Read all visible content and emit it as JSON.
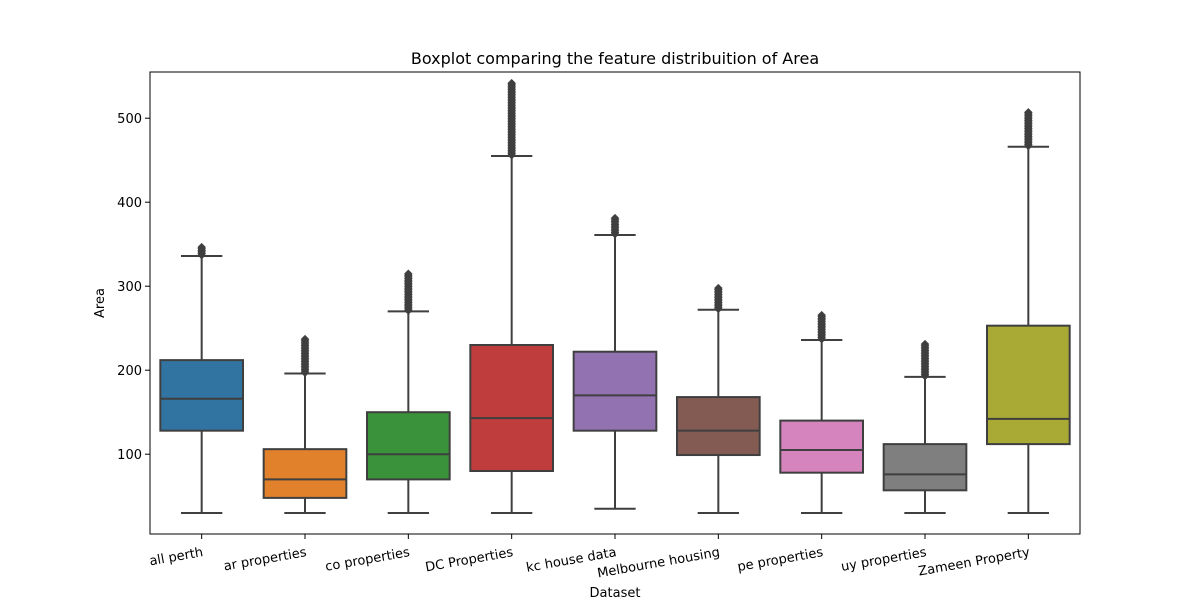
{
  "chart_data": {
    "type": "boxplot",
    "title": "Boxplot comparing the feature distribuition of Area",
    "xlabel": "Dataset",
    "ylabel": "Area",
    "ylim": [
      5,
      555
    ],
    "yticks": [
      100,
      200,
      300,
      400,
      500
    ],
    "grid": false,
    "categories": [
      "all perth",
      "ar properties",
      "co properties",
      "DC Properties",
      "kc house data",
      "Melbourne housing",
      "pe properties",
      "uy properties",
      "Zameen Property"
    ],
    "colors": [
      "#3274a1",
      "#e1812c",
      "#3a923a",
      "#c03d3e",
      "#9372b2",
      "#845b53",
      "#d684bd",
      "#7f7f7f",
      "#a9aa35"
    ],
    "boxes": [
      {
        "min": 30,
        "q1": 128,
        "median": 166,
        "q3": 212,
        "max": 336,
        "outlier_min": 337,
        "outlier_max": 348
      },
      {
        "min": 30,
        "q1": 48,
        "median": 70,
        "q3": 106,
        "max": 196,
        "outlier_min": 197,
        "outlier_max": 237
      },
      {
        "min": 30,
        "q1": 70,
        "median": 100,
        "q3": 150,
        "max": 270,
        "outlier_min": 271,
        "outlier_max": 315
      },
      {
        "min": 30,
        "q1": 80,
        "median": 143,
        "q3": 230,
        "max": 455,
        "outlier_min": 456,
        "outlier_max": 543
      },
      {
        "min": 35,
        "q1": 128,
        "median": 170,
        "q3": 222,
        "max": 361,
        "outlier_min": 362,
        "outlier_max": 382
      },
      {
        "min": 30,
        "q1": 99,
        "median": 128,
        "q3": 168,
        "max": 272,
        "outlier_min": 273,
        "outlier_max": 298
      },
      {
        "min": 30,
        "q1": 78,
        "median": 105,
        "q3": 140,
        "max": 236,
        "outlier_min": 237,
        "outlier_max": 266
      },
      {
        "min": 30,
        "q1": 57,
        "median": 76,
        "q3": 112,
        "max": 192,
        "outlier_min": 193,
        "outlier_max": 232
      },
      {
        "min": 30,
        "q1": 112,
        "median": 142,
        "q3": 253,
        "max": 466,
        "outlier_min": 467,
        "outlier_max": 508
      }
    ]
  }
}
